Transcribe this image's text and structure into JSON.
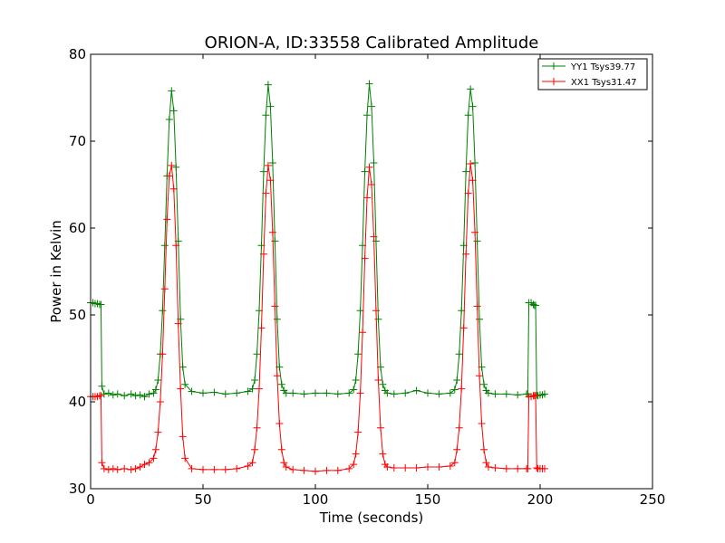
{
  "chart_data": {
    "type": "line",
    "title": "ORION-A, ID:33558 Calibrated Amplitude",
    "xlabel": "Time (seconds)",
    "ylabel": "Power in Kelvin",
    "xlim": [
      0,
      250
    ],
    "ylim": [
      30,
      80
    ],
    "xticks": [
      0,
      50,
      100,
      150,
      200,
      250
    ],
    "yticks": [
      30,
      40,
      50,
      60,
      70,
      80
    ],
    "grid": false,
    "legend_position": "top-right",
    "marker": "+",
    "series": [
      {
        "name": "YY1 Tsys39.77",
        "color": "#008000",
        "x": [
          0,
          1,
          2,
          3,
          4,
          4.6,
          5,
          6,
          8,
          10,
          12,
          15,
          18,
          20,
          22,
          24,
          26,
          28,
          29,
          30,
          31,
          32,
          33,
          34,
          35,
          36,
          37,
          38,
          39,
          40,
          41,
          42,
          45,
          50,
          55,
          60,
          65,
          70,
          72,
          73,
          74,
          75,
          76,
          77,
          78,
          79,
          80,
          81,
          82,
          83,
          84,
          85,
          86,
          87,
          90,
          95,
          100,
          105,
          110,
          115,
          117,
          118,
          119,
          120,
          121,
          122,
          123,
          124,
          125,
          126,
          127,
          128,
          129,
          130,
          131,
          132,
          135,
          140,
          145,
          150,
          155,
          160,
          162,
          163,
          164,
          165,
          166,
          167,
          168,
          169,
          170,
          171,
          172,
          173,
          174,
          175,
          176,
          177,
          180,
          185,
          190,
          194,
          194.5,
          195,
          196,
          197,
          197.5,
          198,
          198.5,
          199,
          200,
          201,
          202
        ],
        "y": [
          51.4,
          51.4,
          51.3,
          51.3,
          51.2,
          51.2,
          41.8,
          40.9,
          41.0,
          40.8,
          40.9,
          40.7,
          40.9,
          40.7,
          40.8,
          40.6,
          40.9,
          41.0,
          41.4,
          42.5,
          45.5,
          50.5,
          58.0,
          66.0,
          72.5,
          75.8,
          73.5,
          67.0,
          58.5,
          49.5,
          44.0,
          42.0,
          41.2,
          41.0,
          41.1,
          40.9,
          41.0,
          41.2,
          41.5,
          42.5,
          45.5,
          50.5,
          58.0,
          66.5,
          73.0,
          76.5,
          74.0,
          67.5,
          58.5,
          49.5,
          44.0,
          42.0,
          41.3,
          41.0,
          41.0,
          40.9,
          41.0,
          41.0,
          40.9,
          41.0,
          41.4,
          42.5,
          45.5,
          50.5,
          58.0,
          66.5,
          73.0,
          76.6,
          74.0,
          67.5,
          58.5,
          49.5,
          44.0,
          42.0,
          41.3,
          41.0,
          40.9,
          41.0,
          41.3,
          41.0,
          40.9,
          41.0,
          41.4,
          42.5,
          45.5,
          50.5,
          58.0,
          66.5,
          73.0,
          76.0,
          74.0,
          67.5,
          58.5,
          49.5,
          44.0,
          42.0,
          41.3,
          41.0,
          40.9,
          40.9,
          40.8,
          40.9,
          40.9,
          51.4,
          51.4,
          51.2,
          51.1,
          51.1,
          40.8,
          40.7,
          40.8,
          40.8,
          40.9
        ]
      },
      {
        "name": "XX1 Tsys31.47",
        "color": "#ff0000",
        "x": [
          0,
          1,
          2,
          3,
          4,
          4.6,
          5,
          6,
          8,
          10,
          12,
          15,
          18,
          20,
          22,
          24,
          26,
          28,
          29,
          30,
          31,
          32,
          33,
          34,
          35,
          36,
          37,
          38,
          39,
          40,
          41,
          42,
          45,
          50,
          55,
          60,
          65,
          70,
          72,
          73,
          74,
          75,
          76,
          77,
          78,
          79,
          80,
          81,
          82,
          83,
          84,
          85,
          86,
          87,
          90,
          95,
          100,
          105,
          110,
          115,
          117,
          118,
          119,
          120,
          121,
          122,
          123,
          124,
          125,
          126,
          127,
          128,
          129,
          130,
          131,
          132,
          135,
          140,
          145,
          150,
          155,
          160,
          162,
          163,
          164,
          165,
          166,
          167,
          168,
          169,
          170,
          171,
          172,
          173,
          174,
          175,
          176,
          177,
          180,
          185,
          190,
          194,
          194.5,
          195,
          196,
          197,
          197.5,
          198,
          198.5,
          199,
          200,
          201,
          202
        ],
        "y": [
          40.6,
          40.6,
          40.6,
          40.6,
          40.7,
          40.7,
          33.0,
          32.3,
          32.2,
          32.3,
          32.2,
          32.3,
          32.2,
          32.3,
          32.5,
          32.8,
          33.0,
          33.5,
          34.5,
          36.5,
          40.0,
          45.5,
          53.0,
          61.0,
          66.0,
          67.2,
          64.5,
          58.0,
          49.0,
          41.5,
          36.0,
          33.5,
          32.3,
          32.2,
          32.2,
          32.2,
          32.3,
          32.6,
          33.0,
          34.5,
          37.0,
          41.5,
          48.5,
          57.0,
          64.0,
          67.2,
          65.5,
          59.5,
          51.0,
          43.0,
          37.5,
          34.5,
          33.0,
          32.5,
          32.2,
          32.1,
          32.0,
          32.1,
          32.1,
          32.3,
          32.8,
          34.0,
          36.5,
          41.0,
          48.0,
          56.5,
          63.5,
          67.0,
          65.0,
          59.0,
          50.5,
          42.5,
          37.0,
          34.0,
          32.8,
          32.5,
          32.4,
          32.4,
          32.4,
          32.5,
          32.5,
          32.6,
          33.0,
          34.5,
          37.0,
          41.5,
          48.5,
          57.0,
          64.0,
          67.4,
          65.5,
          59.5,
          51.0,
          43.0,
          37.5,
          34.5,
          33.0,
          32.5,
          32.4,
          32.3,
          32.3,
          32.3,
          32.3,
          40.6,
          40.6,
          40.7,
          40.7,
          40.7,
          32.4,
          32.3,
          32.3,
          32.3,
          32.3
        ]
      }
    ]
  }
}
